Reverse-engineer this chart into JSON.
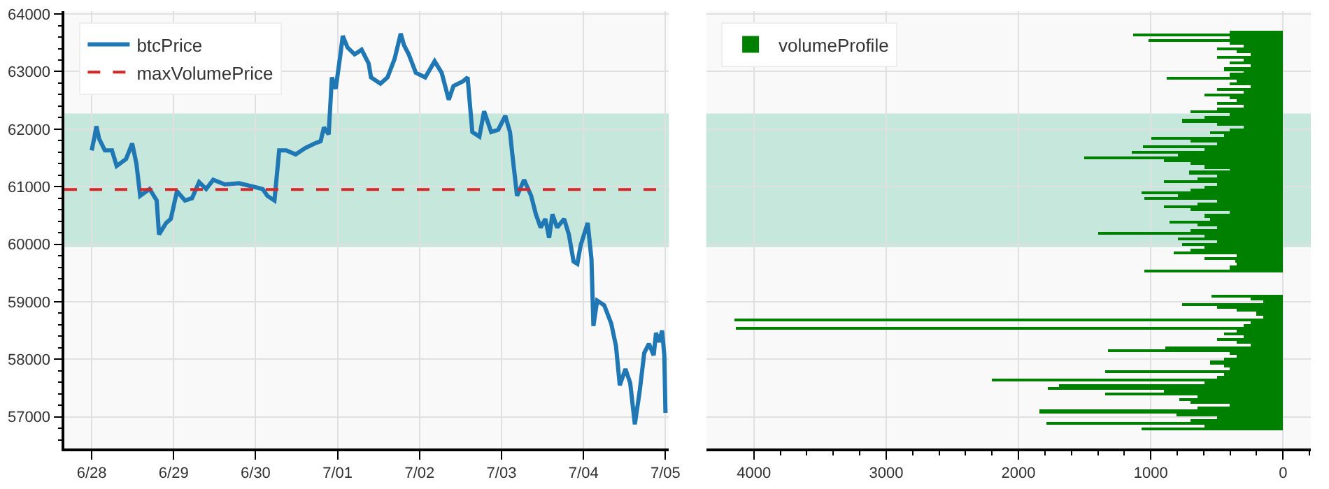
{
  "chart_data": [
    {
      "type": "line",
      "legend": "top left",
      "grid": true,
      "line_style": "solid",
      "marker": "none",
      "x": [
        "--06-28T00:00",
        "--06-28T00:50",
        "--06-28T01:23",
        "--06-28T02:12",
        "--06-28T03:52",
        "--06-28T05:56",
        "--06-28T07:19",
        "--06-28T10:04",
        "--06-28T11:52",
        "--06-28T13:06",
        "--06-28T14:12",
        "--06-28T16:58",
        "--06-28T19:02",
        "--06-28T19:43",
        "--06-28T21:48",
        "--06-28T23:10",
        "--06-29T00:58",
        "--06-29T03:19",
        "--06-29T05:23",
        "--06-29T07:27",
        "--06-29T09:31",
        "--06-29T11:35",
        "--06-29T15:02",
        "--06-29T19:10",
        "--06-29T23:19",
        "--06-30T02:04",
        "--06-30T03:27",
        "--06-30T05:31",
        "--06-30T06:54",
        "--06-30T08:58",
        "--06-30T11:43",
        "--06-30T14:29",
        "--06-30T17:14",
        "--06-30T19:02",
        "--06-30T20:00",
        "--06-30T21:23",
        "--06-30T22:20",
        "--06-30T23:27",
        "--07-01T00:50",
        "--07-01T01:31",
        "--07-01T02:54",
        "--07-01T04:58",
        "--07-01T07:02",
        "--07-01T09:06",
        "--07-01T09:47",
        "--07-01T12:33",
        "--07-01T14:37",
        "--07-01T16:41",
        "--07-01T18:29",
        "--07-01T19:27",
        "--07-01T20:50",
        "--07-01T22:54",
        "--07-02T01:39",
        "--07-02T04:25",
        "--07-02T06:29",
        "--07-02T08:33",
        "--07-02T09:56",
        "--07-02T12:41",
        "--07-02T14:04",
        "--07-02T15:27",
        "--07-02T17:31",
        "--07-02T18:54",
        "--07-02T20:58",
        "--07-02T23:02",
        "--07-03T01:06",
        "--07-03T02:29",
        "--07-03T03:10",
        "--07-03T04:33",
        "--07-03T06:37",
        "--07-03T08:41",
        "--07-03T10:04",
        "--07-03T11:27",
        "--07-03T12:50",
        "--07-03T13:56",
        "--07-03T14:54",
        "--07-03T16:17",
        "--07-03T18:20",
        "--07-03T19:43",
        "--07-03T21:06",
        "--07-03T22:12",
        "--07-03T23:10",
        "--07-04T01:14",
        "--07-04T02:20",
        "--07-04T02:54",
        "--07-04T04:00",
        "--07-04T06:04",
        "--07-04T08:08",
        "--07-04T09:31",
        "--07-04T10:37",
        "--07-04T12:17",
        "--07-04T13:40",
        "--07-04T15:02",
        "--07-04T16:25",
        "--07-04T17:47",
        "--07-04T19:10",
        "--07-04T20:33",
        "--07-04T21:14",
        "--07-04T22:10",
        "--07-04T23:00",
        "--07-04T23:40",
        "--07-05T00:00"
      ],
      "series": [
        {
          "name": "btcPrice",
          "color": "#1f77b4",
          "values": [
            61630,
            61870,
            62050,
            61830,
            61630,
            61630,
            61360,
            61480,
            61750,
            61400,
            60840,
            60960,
            60760,
            60170,
            60370,
            60440,
            60920,
            60760,
            60800,
            61080,
            60960,
            61120,
            61040,
            61060,
            61000,
            60960,
            60840,
            60760,
            61630,
            61630,
            61560,
            61670,
            61750,
            61790,
            62030,
            61910,
            62900,
            62700,
            63300,
            63620,
            63420,
            63300,
            63380,
            63140,
            62900,
            62790,
            62900,
            63220,
            63660,
            63460,
            63300,
            62980,
            62900,
            63180,
            62980,
            62510,
            62750,
            62830,
            62900,
            61950,
            61870,
            62310,
            61950,
            61990,
            62230,
            61950,
            61560,
            60840,
            61120,
            60840,
            60520,
            60290,
            60440,
            60110,
            60520,
            60290,
            60440,
            60170,
            59700,
            59660,
            59980,
            60370,
            59740,
            58580,
            59020,
            58940,
            58620,
            58230,
            57550,
            57830,
            57590,
            56870,
            57430,
            58110,
            58270,
            58070,
            58460,
            58300,
            58500,
            58070,
            57070
          ]
        }
      ],
      "ref_lines": [
        {
          "axis": "y",
          "value": 60950,
          "label": "maxVolumePrice",
          "color": "#d62728",
          "line_style": "dashed"
        }
      ],
      "bands": [
        {
          "axis": "y",
          "from": 59950,
          "to": 62270,
          "color": "#c6e7dc"
        }
      ],
      "xlim": [
        "--06-27T16:00",
        "--07-05T01:00"
      ],
      "xticks": [
        {
          "value": "--06-28",
          "label": "6/28"
        },
        {
          "value": "--06-29",
          "label": "6/29"
        },
        {
          "value": "--06-30",
          "label": "6/30"
        },
        {
          "value": "--07-01",
          "label": "7/01"
        },
        {
          "value": "--07-02",
          "label": "7/02"
        },
        {
          "value": "--07-03",
          "label": "7/03"
        },
        {
          "value": "--07-04",
          "label": "7/04"
        },
        {
          "value": "--07-05",
          "label": "7/05"
        }
      ],
      "ylim": [
        56450,
        64050
      ],
      "yticks": [
        {
          "value": 56600,
          "label": null
        },
        {
          "value": 56800,
          "label": null
        },
        57000,
        {
          "value": 57200,
          "label": null
        },
        {
          "value": 57400,
          "label": null
        },
        {
          "value": 57600,
          "label": null
        },
        {
          "value": 57800,
          "label": null
        },
        58000,
        {
          "value": 58200,
          "label": null
        },
        {
          "value": 58400,
          "label": null
        },
        {
          "value": 58600,
          "label": null
        },
        {
          "value": 58800,
          "label": null
        },
        59000,
        {
          "value": 59200,
          "label": null
        },
        {
          "value": 59400,
          "label": null
        },
        {
          "value": 59600,
          "label": null
        },
        {
          "value": 59800,
          "label": null
        },
        60000,
        {
          "value": 60200,
          "label": null
        },
        {
          "value": 60400,
          "label": null
        },
        {
          "value": 60600,
          "label": null
        },
        {
          "value": 60800,
          "label": null
        },
        61000,
        {
          "value": 61200,
          "label": null
        },
        {
          "value": 61400,
          "label": null
        },
        {
          "value": 61600,
          "label": null
        },
        {
          "value": 61800,
          "label": null
        },
        62000,
        {
          "value": 62200,
          "label": null
        },
        {
          "value": 62400,
          "label": null
        },
        {
          "value": 62600,
          "label": null
        },
        {
          "value": 62800,
          "label": null
        },
        63000,
        {
          "value": 63200,
          "label": null
        },
        {
          "value": 63400,
          "label": null
        },
        {
          "value": 63600,
          "label": null
        },
        {
          "value": 63800,
          "label": null
        },
        64000
      ]
    },
    {
      "type": "bar",
      "orientation": "horizontal",
      "legend": "top left",
      "grid": true,
      "tick_labels": "x",
      "x": [
        56800,
        56850,
        56900,
        56950,
        57000,
        57050,
        57100,
        57150,
        57200,
        57250,
        57300,
        57350,
        57400,
        57450,
        57500,
        57550,
        57600,
        57650,
        57700,
        57750,
        57800,
        57850,
        57900,
        57950,
        58000,
        58050,
        58100,
        58150,
        58200,
        58250,
        58300,
        58350,
        58400,
        58450,
        58500,
        58550,
        58600,
        58650,
        58700,
        58750,
        58800,
        58850,
        58900,
        58950,
        59000,
        59050,
        59100,
        59550,
        59600,
        59650,
        59700,
        59750,
        59800,
        59850,
        59900,
        59950,
        60000,
        60050,
        60100,
        60150,
        60200,
        60250,
        60300,
        60350,
        60400,
        60450,
        60500,
        60550,
        60600,
        60650,
        60700,
        60750,
        60800,
        60850,
        60900,
        60950,
        61000,
        61050,
        61100,
        61150,
        61200,
        61250,
        61300,
        61350,
        61400,
        61450,
        61500,
        61550,
        61600,
        61650,
        61700,
        61750,
        61800,
        61850,
        61900,
        61950,
        62000,
        62050,
        62100,
        62150,
        62200,
        62250,
        62300,
        62350,
        62400,
        62450,
        62500,
        62550,
        62600,
        62650,
        62700,
        62750,
        62800,
        62850,
        62900,
        62950,
        63000,
        63050,
        63100,
        63150,
        63200,
        63250,
        63300,
        63350,
        63400,
        63450,
        63500,
        63550,
        63600,
        63650,
        63700
      ],
      "series": [
        {
          "name": "volumeProfile",
          "color": "#008000",
          "values": [
            1070,
            600,
            1790,
            700,
            500,
            810,
            1840,
            650,
            400,
            700,
            790,
            650,
            1350,
            900,
            1780,
            1700,
            600,
            2200,
            500,
            450,
            1350,
            400,
            450,
            550,
            450,
            350,
            400,
            1330,
            890,
            250,
            350,
            500,
            300,
            450,
            350,
            4140,
            300,
            250,
            4150,
            150,
            200,
            350,
            500,
            760,
            150,
            250,
            540,
            1050,
            400,
            350,
            360,
            600,
            350,
            830,
            700,
            600,
            760,
            500,
            800,
            600,
            1400,
            700,
            500,
            650,
            860,
            550,
            600,
            400,
            700,
            900,
            650,
            500,
            1050,
            800,
            1070,
            700,
            600,
            500,
            900,
            650,
            500,
            710,
            400,
            600,
            700,
            900,
            1500,
            800,
            1140,
            600,
            1060,
            500,
            700,
            1000,
            450,
            550,
            400,
            300,
            500,
            760,
            600,
            400,
            700,
            500,
            300,
            500,
            350,
            400,
            600,
            300,
            500,
            250,
            400,
            350,
            880,
            400,
            300,
            450,
            250,
            400,
            300,
            500,
            250,
            350,
            500,
            300,
            400,
            1020,
            400,
            1130,
            400
          ]
        }
      ],
      "bands": [
        {
          "axis": "y",
          "from": 59950,
          "to": 62270,
          "color": "#c6e7dc"
        }
      ],
      "xlim": [
        4360,
        -210
      ],
      "xticks": [
        4000,
        {
          "value": 3800,
          "label": null
        },
        {
          "value": 3600,
          "label": null
        },
        {
          "value": 3400,
          "label": null
        },
        {
          "value": 3200,
          "label": null
        },
        3000,
        {
          "value": 2800,
          "label": null
        },
        {
          "value": 2600,
          "label": null
        },
        {
          "value": 2400,
          "label": null
        },
        {
          "value": 2200,
          "label": null
        },
        2000,
        {
          "value": 1800,
          "label": null
        },
        {
          "value": 1600,
          "label": null
        },
        {
          "value": 1400,
          "label": null
        },
        {
          "value": 1200,
          "label": null
        },
        1000,
        {
          "value": 800,
          "label": null
        },
        {
          "value": 600,
          "label": null
        },
        {
          "value": 400,
          "label": null
        },
        {
          "value": 200,
          "label": null
        },
        0,
        {
          "value": -200,
          "label": null
        }
      ],
      "ylim": [
        56450,
        64050
      ],
      "yticks": [
        57000,
        58000,
        59000,
        60000,
        61000,
        62000,
        63000,
        64000
      ]
    }
  ]
}
